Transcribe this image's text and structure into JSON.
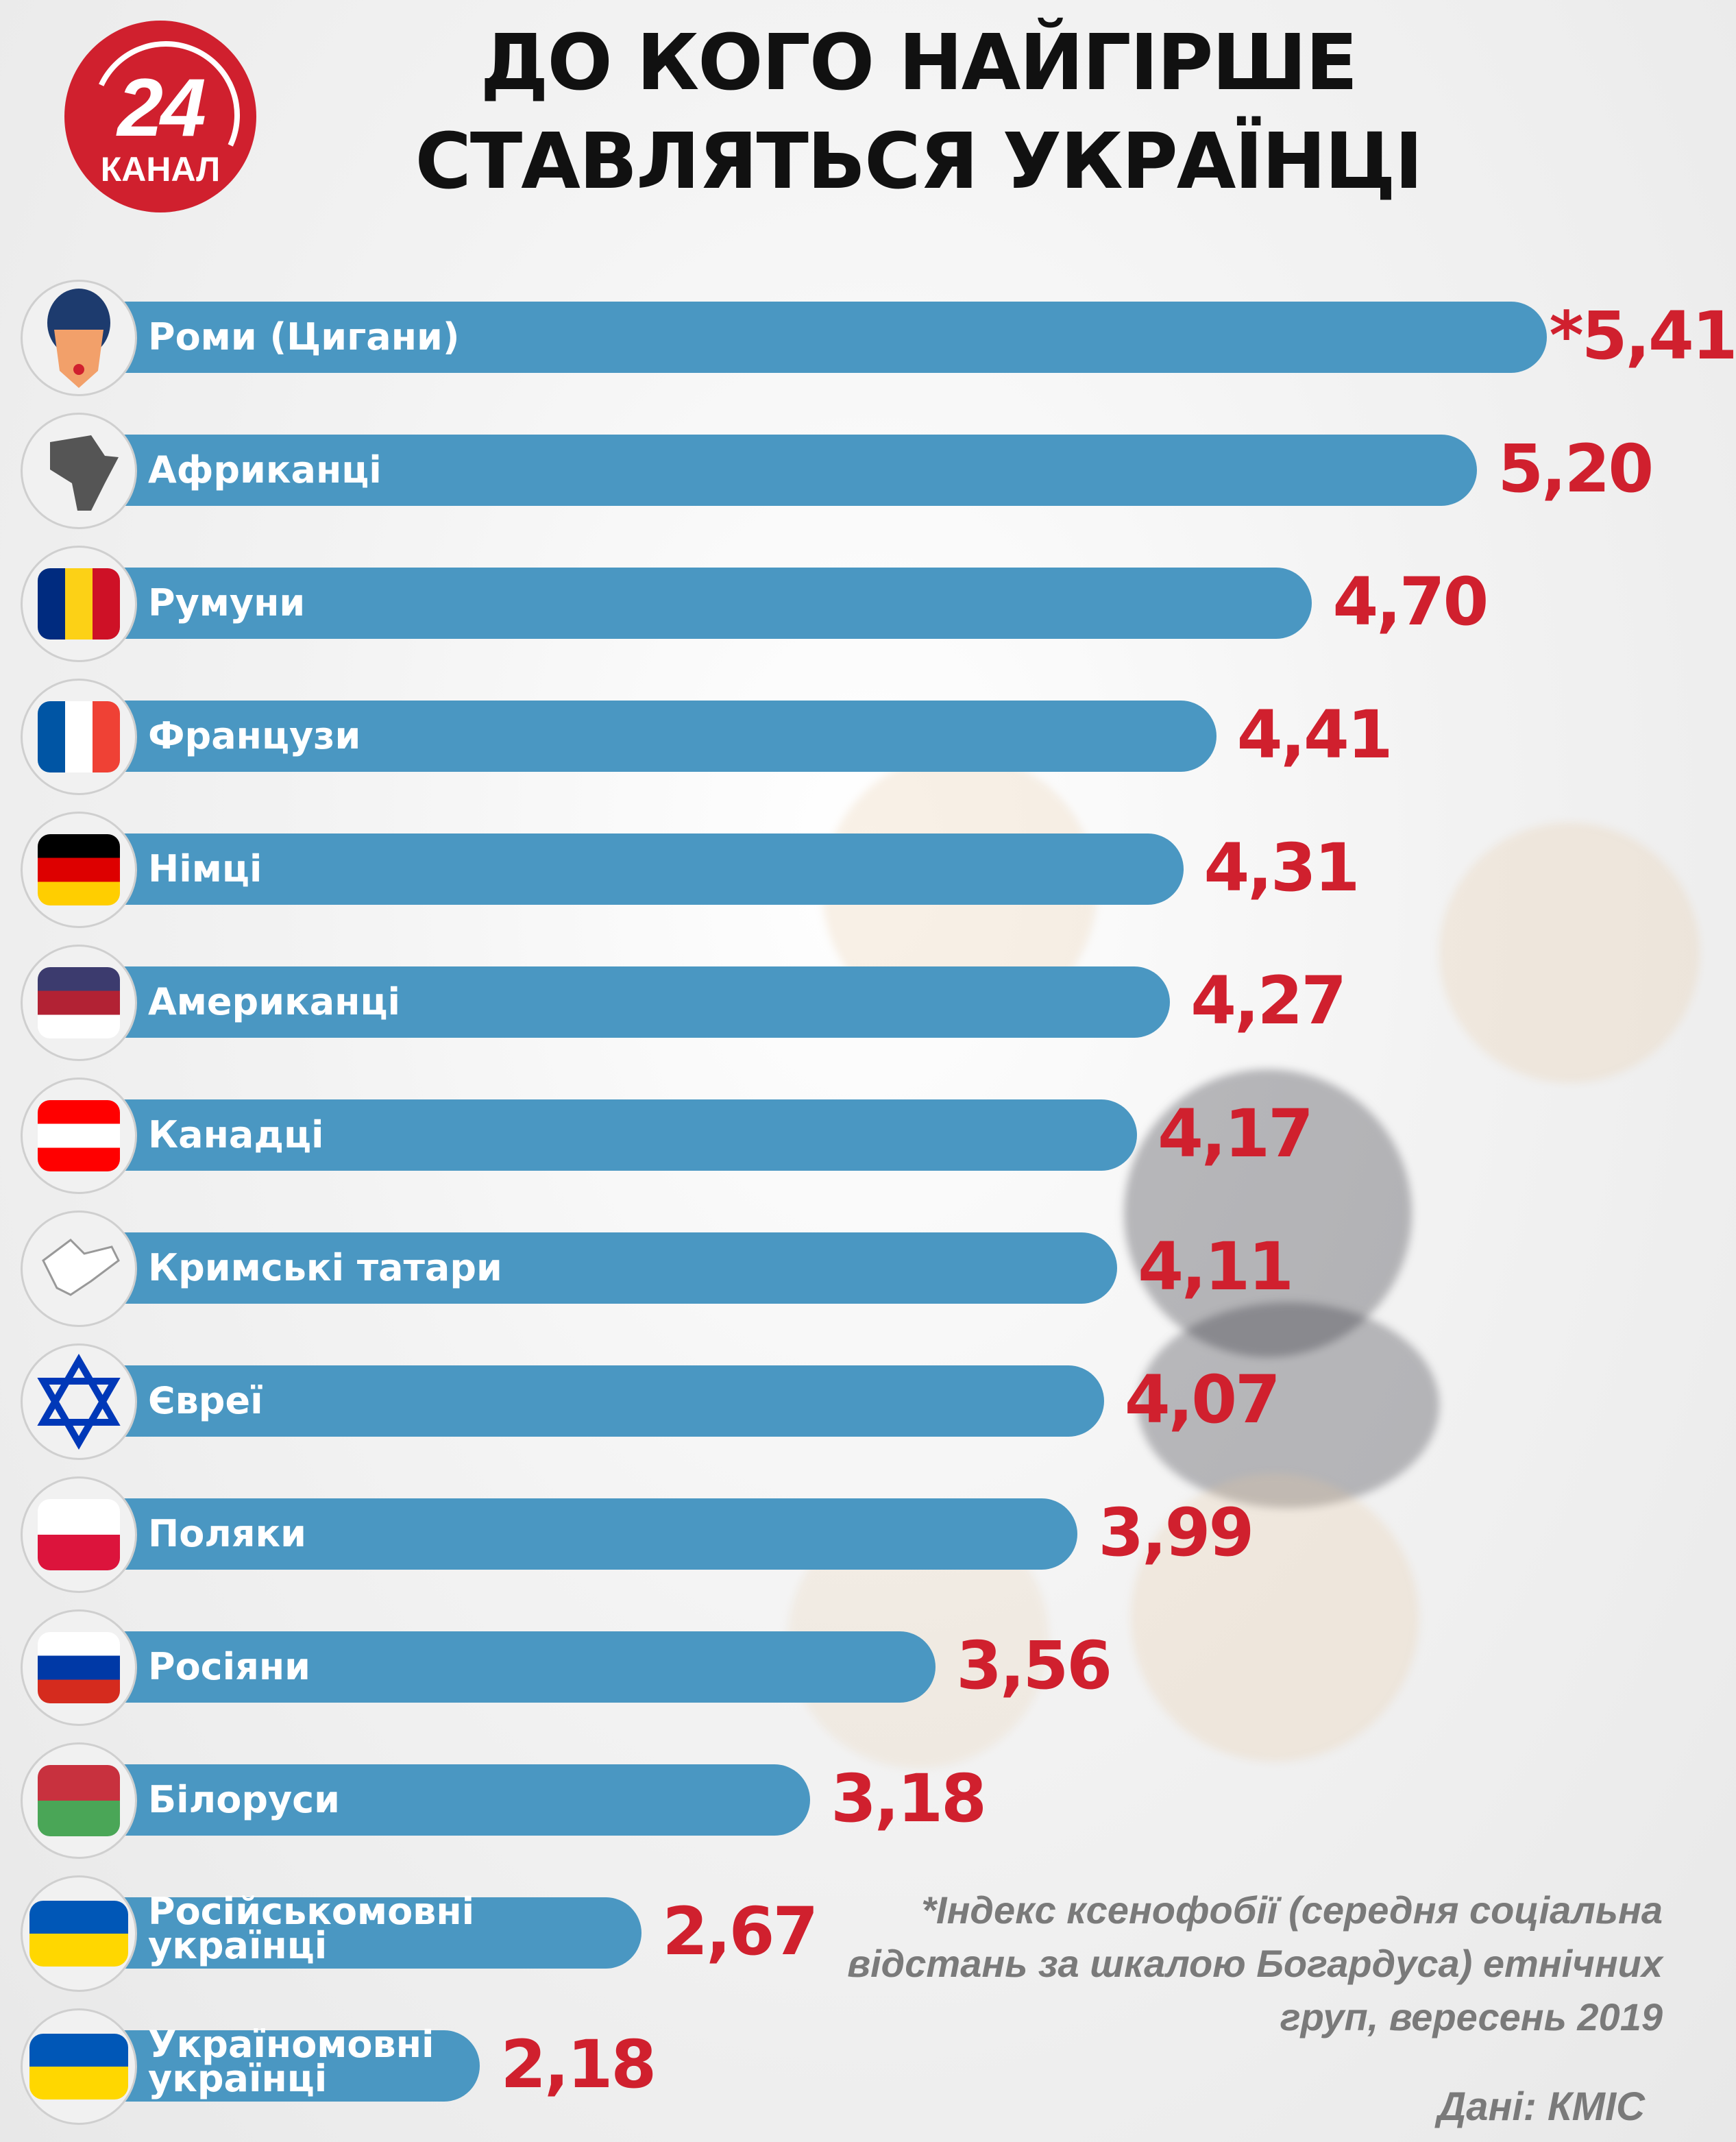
{
  "logo": {
    "number": "24",
    "text": "КАНАЛ",
    "color": "#d0202e"
  },
  "chart_data": {
    "type": "bar",
    "orientation": "horizontal",
    "title": "ДО КОГО НАЙГІРШЕ СТАВЛЯТЬСЯ УКРАЇНЦІ",
    "title_lines": [
      "ДО КОГО НАЙГІРШЕ",
      "СТАВЛЯТЬСЯ УКРАЇНЦІ"
    ],
    "bar_color": "#4a97c2",
    "value_color": "#d0202e",
    "categories": [
      "Роми (Цигани)",
      "Африканці",
      "Румуни",
      "Французи",
      "Німці",
      "Американці",
      "Канадці",
      "Кримські татари",
      "Євреї",
      "Поляки",
      "Росіяни",
      "Білоруси",
      "Російськомовні українці",
      "Україномовні українці"
    ],
    "values": [
      5.41,
      5.2,
      4.7,
      4.41,
      4.31,
      4.27,
      4.17,
      4.11,
      4.07,
      3.99,
      3.56,
      3.18,
      2.67,
      2.18
    ],
    "value_labels": [
      "*5,41",
      "5,20",
      "4,70",
      "4,41",
      "4,31",
      "4,27",
      "4,17",
      "4,11",
      "4,07",
      "3,99",
      "3,56",
      "3,18",
      "2,67",
      "2,18"
    ],
    "icons": [
      {
        "name": "roma-woman-icon",
        "colors": [
          "#1d3b6e",
          "#f2a06a"
        ]
      },
      {
        "name": "africa-map-icon",
        "colors": [
          "#555555",
          "#555555"
        ]
      },
      {
        "name": "romania-flag-icon",
        "colors": [
          "#002b7f",
          "#fcd116",
          "#ce1126"
        ]
      },
      {
        "name": "france-flag-icon",
        "colors": [
          "#0055a4",
          "#ffffff",
          "#ef4135"
        ]
      },
      {
        "name": "germany-flag-icon",
        "colors": [
          "#000000",
          "#dd0000",
          "#ffce00"
        ]
      },
      {
        "name": "usa-flag-icon",
        "colors": [
          "#3c3b6e",
          "#b22234",
          "#ffffff"
        ]
      },
      {
        "name": "canada-flag-icon",
        "colors": [
          "#ff0000",
          "#ffffff",
          "#ff0000"
        ]
      },
      {
        "name": "crimea-map-icon",
        "colors": [
          "#ffffff",
          "#ffffff"
        ]
      },
      {
        "name": "star-of-david-icon",
        "colors": [
          "#0038b8",
          "#0038b8"
        ]
      },
      {
        "name": "poland-flag-icon",
        "colors": [
          "#ffffff",
          "#dc143c"
        ]
      },
      {
        "name": "russia-flag-icon",
        "colors": [
          "#ffffff",
          "#0039a6",
          "#d52b1e"
        ]
      },
      {
        "name": "belarus-flag-icon",
        "colors": [
          "#c8313e",
          "#4aa657"
        ]
      },
      {
        "name": "ukraine-russian-lips-icon",
        "colors": [
          "#0057b7",
          "#ffd700"
        ]
      },
      {
        "name": "ukraine-lips-icon",
        "colors": [
          "#0057b7",
          "#ffd700"
        ]
      }
    ],
    "legend": "none",
    "grid": false
  },
  "footnote": [
    "*Індекс ксенофобії (середня соціальна",
    "відстань за шкалою Богардуса) етнічних",
    "груп, вересень 2019"
  ],
  "source": "Дані: КМІС"
}
